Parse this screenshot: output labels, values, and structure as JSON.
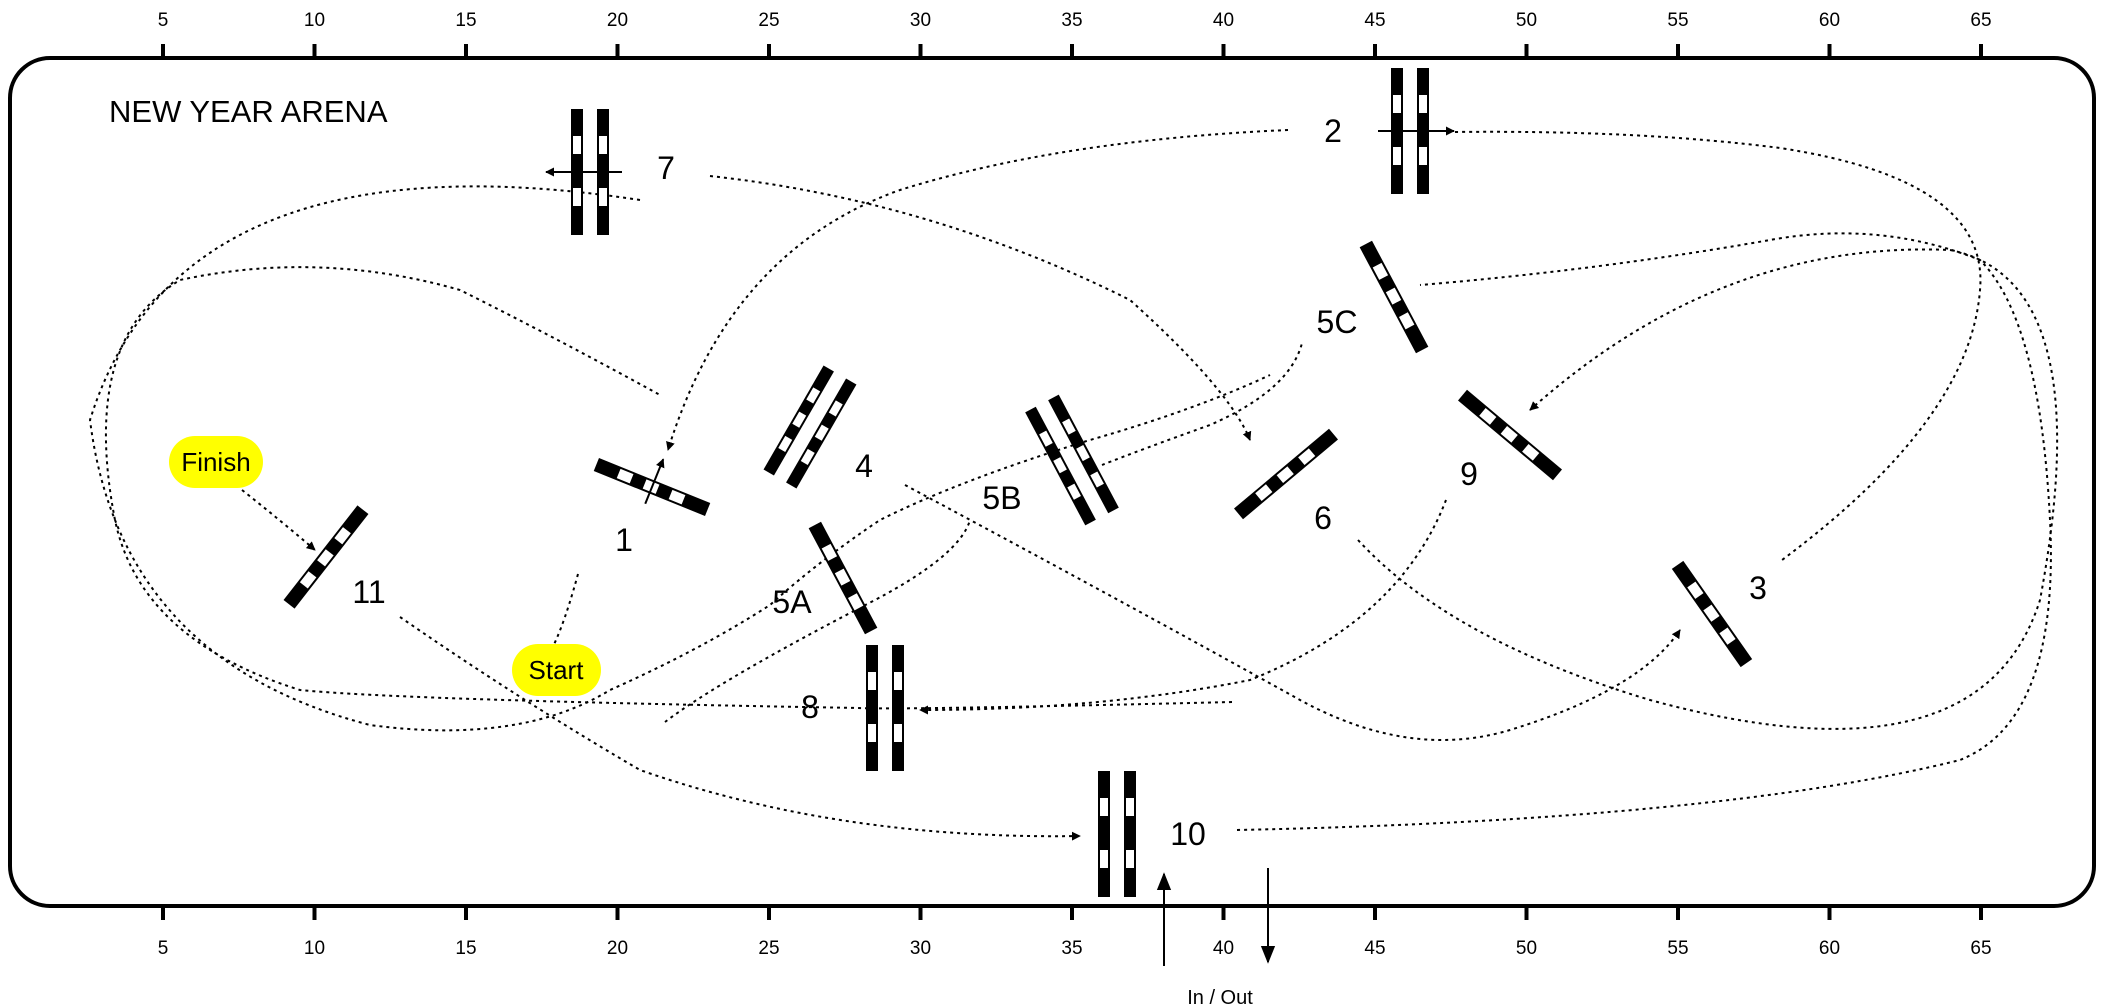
{
  "arena": {
    "title": "NEW YEAR ARENA",
    "border_color": "#000000",
    "background": "#ffffff"
  },
  "scale": {
    "ticks": [
      "5",
      "10",
      "15",
      "20",
      "25",
      "30",
      "35",
      "40",
      "45",
      "50",
      "55",
      "60",
      "65"
    ]
  },
  "fences": [
    {
      "label": "1",
      "type": "vertical"
    },
    {
      "label": "2",
      "type": "oxer"
    },
    {
      "label": "3",
      "type": "vertical"
    },
    {
      "label": "4",
      "type": "oxer"
    },
    {
      "label": "5A",
      "type": "vertical"
    },
    {
      "label": "5B",
      "type": "oxer"
    },
    {
      "label": "5C",
      "type": "vertical"
    },
    {
      "label": "6",
      "type": "vertical"
    },
    {
      "label": "7",
      "type": "oxer"
    },
    {
      "label": "8",
      "type": "oxer"
    },
    {
      "label": "9",
      "type": "vertical"
    },
    {
      "label": "10",
      "type": "oxer"
    },
    {
      "label": "11",
      "type": "vertical"
    }
  ],
  "markers": {
    "start": "Start",
    "finish": "Finish",
    "highlight_color": "#ffff00"
  },
  "gate": {
    "label": "In / Out"
  }
}
